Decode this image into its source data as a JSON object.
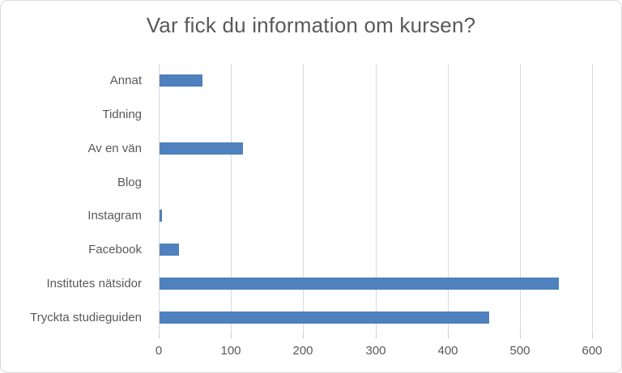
{
  "chart_data": {
    "type": "bar",
    "orientation": "horizontal",
    "title": "Var fick du information om kursen?",
    "categories": [
      "Annat",
      "Tidning",
      "Av en vän",
      "Blog",
      "Instagram",
      "Facebook",
      "Institutes nätsidor",
      "Tryckta studieguiden"
    ],
    "values": [
      59,
      0,
      116,
      0,
      3,
      27,
      553,
      456
    ],
    "xlabel": "",
    "ylabel": "",
    "xticks": [
      0,
      100,
      200,
      300,
      400,
      500,
      600
    ],
    "xlim": [
      0,
      600
    ],
    "grid": true,
    "legend": "none",
    "colors": {
      "bar": "#4E81BD",
      "gridline": "#D9D9D9",
      "tick": "#C6C6C6",
      "text": "#595959",
      "title": "#595959",
      "frame_border": "#D9D9D9",
      "background": "#FFFFFF"
    }
  }
}
